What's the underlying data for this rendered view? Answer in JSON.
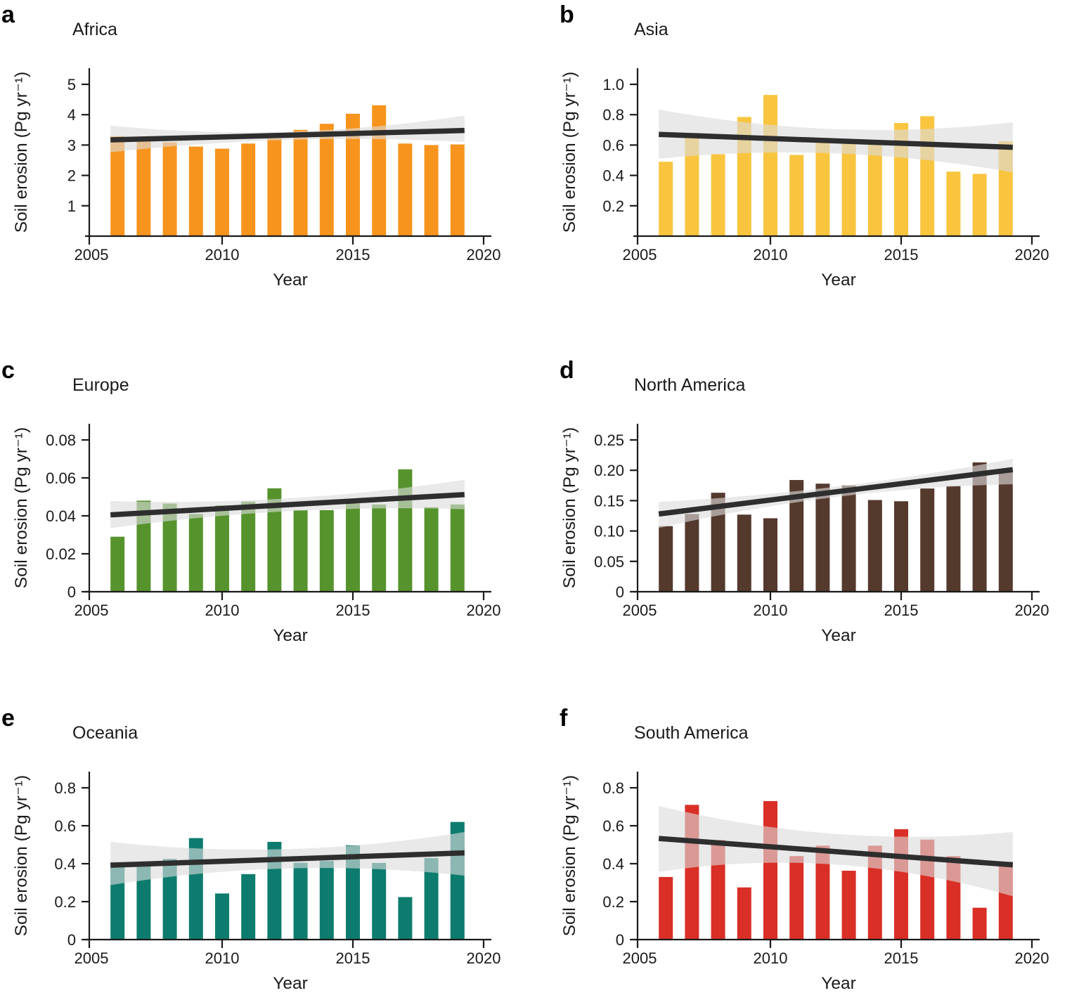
{
  "figure": {
    "background": "#FFFFFF",
    "text_color": "#1A1A1A",
    "trend_line_color": "#2E2E2E",
    "confidence_band_color": "#DCDCDC"
  },
  "chart_data": [
    {
      "type": "bar",
      "panel_letter": "a",
      "title": "Africa",
      "xlabel": "Year",
      "ylabel": "Soil erosion (Pg yr⁻¹)",
      "bar_color": "#F7941E",
      "years": [
        2006,
        2007,
        2008,
        2009,
        2010,
        2011,
        2012,
        2013,
        2014,
        2015,
        2016,
        2017,
        2018,
        2019
      ],
      "values": [
        3.29,
        3.12,
        3.09,
        2.95,
        2.88,
        3.05,
        3.22,
        3.5,
        3.7,
        4.03,
        4.31,
        3.05,
        3.0,
        3.02
      ],
      "yticks": [
        1,
        2,
        3,
        4,
        5
      ],
      "ytick_labels": [
        "1",
        "2",
        "3",
        "4",
        "5"
      ],
      "xticks": [
        2005,
        2010,
        2015,
        2020
      ],
      "xtick_labels": [
        "2005",
        "2010",
        "2015",
        "2020"
      ],
      "ylim": [
        0,
        5.4
      ],
      "xlim": [
        2005,
        2020
      ],
      "grid": false,
      "trend": {
        "x_range": [
          2006,
          2019
        ],
        "y": [
          3.17,
          3.48
        ]
      },
      "ci_band": {
        "x_range": [
          2006,
          2019
        ],
        "top": [
          3.64,
          3.44,
          3.97
        ],
        "bottom": [
          2.76,
          3.17,
          3.1
        ]
      }
    },
    {
      "type": "bar",
      "panel_letter": "b",
      "title": "Asia",
      "xlabel": "Year",
      "ylabel": "Soil erosion (Pg yr⁻¹)",
      "bar_color": "#F9C53F",
      "years": [
        2006,
        2007,
        2008,
        2009,
        2010,
        2011,
        2012,
        2013,
        2014,
        2015,
        2016,
        2017,
        2018,
        2019
      ],
      "values": [
        0.49,
        0.68,
        0.54,
        0.785,
        0.93,
        0.535,
        0.625,
        0.615,
        0.61,
        0.745,
        0.79,
        0.425,
        0.41,
        0.625
      ],
      "yticks": [
        0.2,
        0.4,
        0.6,
        0.8,
        1.0
      ],
      "ytick_labels": [
        "0.2",
        "0.4",
        "0.6",
        "0.8",
        "1.0"
      ],
      "xticks": [
        2005,
        2010,
        2015,
        2020
      ],
      "xtick_labels": [
        "2005",
        "2010",
        "2015",
        "2020"
      ],
      "ylim": [
        0,
        1.08
      ],
      "xlim": [
        2005,
        2020
      ],
      "grid": false,
      "trend": {
        "x_range": [
          2006,
          2019
        ],
        "y": [
          0.67,
          0.585
        ]
      },
      "ci_band": {
        "x_range": [
          2006,
          2019
        ],
        "top": [
          0.835,
          0.705,
          0.75
        ],
        "bottom": [
          0.51,
          0.545,
          0.42
        ]
      }
    },
    {
      "type": "bar",
      "panel_letter": "c",
      "title": "Europe",
      "xlabel": "Year",
      "ylabel": "Soil erosion (Pg yr⁻¹)",
      "bar_color": "#56932D",
      "years": [
        2006,
        2007,
        2008,
        2009,
        2010,
        2011,
        2012,
        2013,
        2014,
        2015,
        2016,
        2017,
        2018,
        2019
      ],
      "values": [
        0.029,
        0.048,
        0.0465,
        0.041,
        0.0455,
        0.0475,
        0.0545,
        0.043,
        0.043,
        0.0465,
        0.046,
        0.0645,
        0.0445,
        0.046
      ],
      "yticks": [
        0,
        0.02,
        0.04,
        0.06,
        0.08
      ],
      "ytick_labels": [
        "0",
        "0.02",
        "0.04",
        "0.06",
        "0.08"
      ],
      "xticks": [
        2005,
        2010,
        2015,
        2020
      ],
      "xtick_labels": [
        "2005",
        "2010",
        "2015",
        "2020"
      ],
      "ylim": [
        0,
        0.0865
      ],
      "xlim": [
        2005,
        2020
      ],
      "grid": false,
      "trend": {
        "x_range": [
          2006,
          2019
        ],
        "y": [
          0.0405,
          0.0512
        ]
      },
      "ci_band": {
        "x_range": [
          2006,
          2019
        ],
        "top": [
          0.0478,
          0.0492,
          0.059
        ],
        "bottom": [
          0.0335,
          0.0424,
          0.0435
        ]
      }
    },
    {
      "type": "bar",
      "panel_letter": "d",
      "title": "North America",
      "xlabel": "Year",
      "ylabel": "Soil erosion (Pg yr⁻¹)",
      "bar_color": "#54392D",
      "years": [
        2006,
        2007,
        2008,
        2009,
        2010,
        2011,
        2012,
        2013,
        2014,
        2015,
        2016,
        2017,
        2018,
        2019
      ],
      "values": [
        0.108,
        0.128,
        0.163,
        0.127,
        0.121,
        0.184,
        0.178,
        0.175,
        0.151,
        0.149,
        0.17,
        0.174,
        0.213,
        0.199
      ],
      "yticks": [
        0,
        0.05,
        0.1,
        0.15,
        0.2,
        0.25
      ],
      "ytick_labels": [
        "0",
        "0.05",
        "0.10",
        "0.15",
        "0.20",
        "0.25"
      ],
      "xticks": [
        2005,
        2010,
        2015,
        2020
      ],
      "xtick_labels": [
        "2005",
        "2010",
        "2015",
        "2020"
      ],
      "ylim": [
        0,
        0.27
      ],
      "xlim": [
        2005,
        2020
      ],
      "grid": false,
      "trend": {
        "x_range": [
          2006,
          2019
        ],
        "y": [
          0.128,
          0.201
        ]
      },
      "ci_band": {
        "x_range": [
          2006,
          2019
        ],
        "top": [
          0.148,
          0.173,
          0.219
        ],
        "bottom": [
          0.105,
          0.156,
          0.177
        ]
      }
    },
    {
      "type": "bar",
      "panel_letter": "e",
      "title": "Oceania",
      "xlabel": "Year",
      "ylabel": "Soil erosion (Pg yr⁻¹)",
      "bar_color": "#0D7C6E",
      "years": [
        2006,
        2007,
        2008,
        2009,
        2010,
        2011,
        2012,
        2013,
        2014,
        2015,
        2016,
        2017,
        2018,
        2019
      ],
      "values": [
        0.408,
        0.4,
        0.425,
        0.535,
        0.243,
        0.345,
        0.515,
        0.405,
        0.415,
        0.497,
        0.404,
        0.224,
        0.43,
        0.62
      ],
      "yticks": [
        0,
        0.2,
        0.4,
        0.6,
        0.8
      ],
      "ytick_labels": [
        "0",
        "0.2",
        "0.4",
        "0.6",
        "0.8"
      ],
      "xticks": [
        2005,
        2010,
        2015,
        2020
      ],
      "xtick_labels": [
        "2005",
        "2010",
        "2015",
        "2020"
      ],
      "ylim": [
        0,
        0.865
      ],
      "xlim": [
        2005,
        2020
      ],
      "grid": false,
      "trend": {
        "x_range": [
          2006,
          2019
        ],
        "y": [
          0.392,
          0.457
        ]
      },
      "ci_band": {
        "x_range": [
          2006,
          2019
        ],
        "top": [
          0.515,
          0.477,
          0.567
        ],
        "bottom": [
          0.287,
          0.375,
          0.337
        ]
      }
    },
    {
      "type": "bar",
      "panel_letter": "f",
      "title": "South America",
      "xlabel": "Year",
      "ylabel": "Soil erosion (Pg yr⁻¹)",
      "bar_color": "#D92F26",
      "years": [
        2006,
        2007,
        2008,
        2009,
        2010,
        2011,
        2012,
        2013,
        2014,
        2015,
        2016,
        2017,
        2018,
        2019
      ],
      "values": [
        0.33,
        0.71,
        0.525,
        0.275,
        0.73,
        0.44,
        0.495,
        0.363,
        0.495,
        0.582,
        0.527,
        0.44,
        0.168,
        0.41
      ],
      "yticks": [
        0,
        0.2,
        0.4,
        0.6,
        0.8
      ],
      "ytick_labels": [
        "0",
        "0.2",
        "0.4",
        "0.6",
        "0.8"
      ],
      "xticks": [
        2005,
        2010,
        2015,
        2020
      ],
      "xtick_labels": [
        "2005",
        "2010",
        "2015",
        "2020"
      ],
      "ylim": [
        0,
        0.865
      ],
      "xlim": [
        2005,
        2020
      ],
      "grid": false,
      "trend": {
        "x_range": [
          2006,
          2019
        ],
        "y": [
          0.533,
          0.394
        ]
      },
      "ci_band": {
        "x_range": [
          2006,
          2019
        ],
        "top": [
          0.705,
          0.557,
          0.567
        ],
        "bottom": [
          0.357,
          0.395,
          0.228
        ]
      }
    }
  ]
}
